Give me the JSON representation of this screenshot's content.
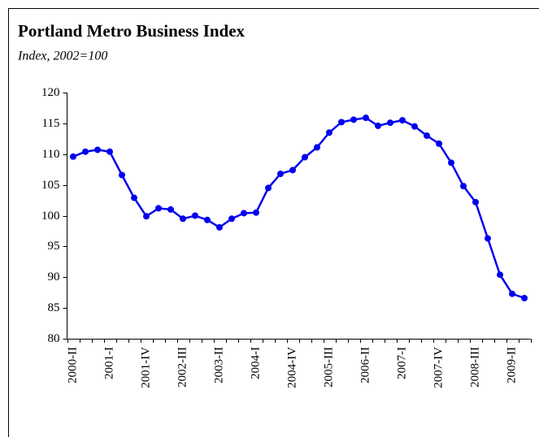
{
  "chart_data": {
    "type": "line",
    "title": "Portland Metro Business Index",
    "subtitle": "Index, 2002=100",
    "categories": [
      "2000-II",
      null,
      null,
      "2001-I",
      null,
      null,
      "2001-IV",
      null,
      null,
      "2002-III",
      null,
      null,
      "2003-II",
      null,
      null,
      "2004-I",
      null,
      null,
      "2004-IV",
      null,
      null,
      "2005-III",
      null,
      null,
      "2006-II",
      null,
      null,
      "2007-I",
      null,
      null,
      "2007-IV",
      null,
      null,
      "2008-III",
      null,
      null,
      "2009-II",
      null
    ],
    "series": [
      {
        "name": "Business Index",
        "color": "#0000ee",
        "values": [
          109.6,
          110.4,
          110.7,
          110.4,
          106.6,
          102.9,
          99.9,
          101.2,
          101.0,
          99.5,
          100.0,
          99.3,
          98.1,
          99.5,
          100.4,
          100.5,
          104.5,
          106.8,
          107.4,
          109.5,
          111.1,
          113.5,
          115.2,
          115.6,
          115.9,
          114.6,
          115.1,
          115.5,
          114.5,
          113.0,
          111.7,
          108.6,
          104.8,
          102.2,
          96.3,
          90.4,
          87.3,
          86.6
        ]
      }
    ],
    "ylim": [
      80,
      120
    ],
    "yticks": [
      80,
      85,
      90,
      95,
      100,
      105,
      110,
      115,
      120
    ]
  }
}
